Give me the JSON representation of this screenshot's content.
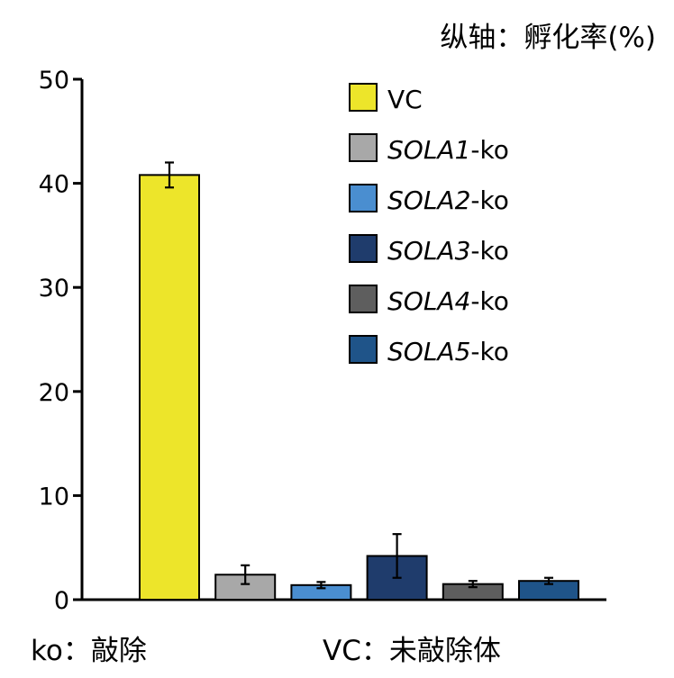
{
  "chart_data": {
    "type": "bar",
    "ylabel": "纵轴：孵化率(%)",
    "ylim": [
      0,
      50
    ],
    "yticks": [
      0,
      10,
      20,
      30,
      40,
      50
    ],
    "categories": [
      "VC",
      "SOLA1-ko",
      "SOLA2-ko",
      "SOLA3-ko",
      "SOLA4-ko",
      "SOLA5-ko"
    ],
    "values": [
      40.8,
      2.4,
      1.4,
      4.2,
      1.5,
      1.8
    ],
    "errors": [
      1.2,
      0.9,
      0.3,
      2.1,
      0.3,
      0.3
    ],
    "colors": [
      "#ede52a",
      "#a8a8a8",
      "#4a8ed0",
      "#1f3c6c",
      "#5e5e5e",
      "#1f5489"
    ],
    "legend": [
      {
        "prefix": "VC",
        "suffix": ""
      },
      {
        "prefix": "SOLA1",
        "suffix": "-ko"
      },
      {
        "prefix": "SOLA2",
        "suffix": "-ko"
      },
      {
        "prefix": "SOLA3",
        "suffix": "-ko"
      },
      {
        "prefix": "SOLA4",
        "suffix": "-ko"
      },
      {
        "prefix": "SOLA5",
        "suffix": "-ko"
      }
    ],
    "legend_position": "top-right",
    "grid": false
  },
  "notes": {
    "left": "ko：敲除",
    "right": "VC：未敲除体"
  }
}
